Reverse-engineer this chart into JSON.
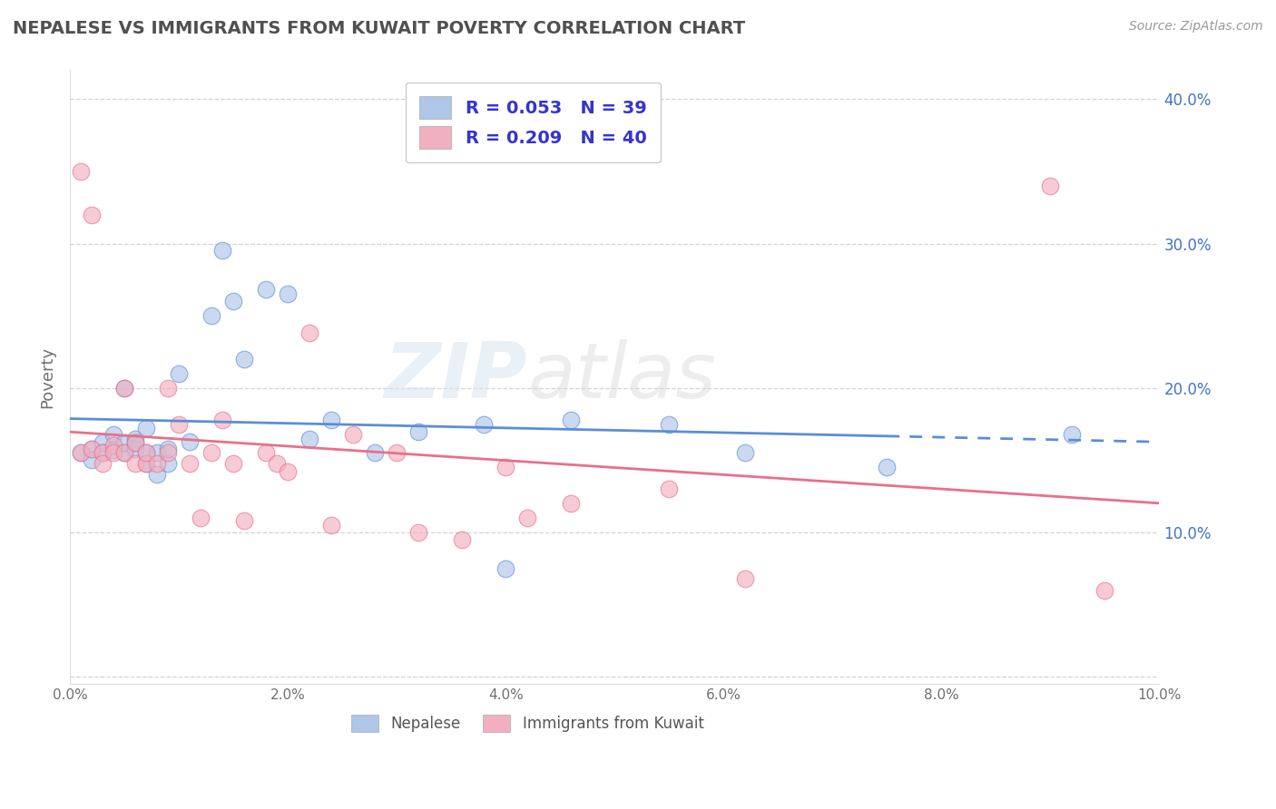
{
  "title": "NEPALESE VS IMMIGRANTS FROM KUWAIT POVERTY CORRELATION CHART",
  "source": "Source: ZipAtlas.com",
  "ylabel": "Poverty",
  "xlim": [
    0.0,
    0.1
  ],
  "ylim": [
    -0.005,
    0.42
  ],
  "xticks": [
    0.0,
    0.02,
    0.04,
    0.06,
    0.08,
    0.1
  ],
  "yticks": [
    0.0,
    0.1,
    0.2,
    0.3,
    0.4
  ],
  "ytick_labels": [
    "",
    "10.0%",
    "20.0%",
    "30.0%",
    "40.0%"
  ],
  "xtick_labels": [
    "0.0%",
    "2.0%",
    "4.0%",
    "6.0%",
    "8.0%",
    "10.0%"
  ],
  "blue_R": 0.053,
  "blue_N": 39,
  "pink_R": 0.209,
  "pink_N": 40,
  "blue_label": "Nepalese",
  "pink_label": "Immigrants from Kuwait",
  "blue_color": "#aec6e8",
  "pink_color": "#f2afc0",
  "blue_line_color": "#5b8dd9",
  "pink_line_color": "#e8708a",
  "blue_scatter": [
    [
      0.001,
      0.155
    ],
    [
      0.002,
      0.158
    ],
    [
      0.002,
      0.15
    ],
    [
      0.003,
      0.162
    ],
    [
      0.003,
      0.155
    ],
    [
      0.004,
      0.168
    ],
    [
      0.004,
      0.157
    ],
    [
      0.005,
      0.2
    ],
    [
      0.005,
      0.155
    ],
    [
      0.005,
      0.162
    ],
    [
      0.006,
      0.165
    ],
    [
      0.006,
      0.158
    ],
    [
      0.006,
      0.162
    ],
    [
      0.007,
      0.155
    ],
    [
      0.007,
      0.148
    ],
    [
      0.007,
      0.172
    ],
    [
      0.008,
      0.155
    ],
    [
      0.008,
      0.14
    ],
    [
      0.009,
      0.148
    ],
    [
      0.009,
      0.158
    ],
    [
      0.01,
      0.21
    ],
    [
      0.011,
      0.163
    ],
    [
      0.013,
      0.25
    ],
    [
      0.014,
      0.295
    ],
    [
      0.015,
      0.26
    ],
    [
      0.016,
      0.22
    ],
    [
      0.018,
      0.268
    ],
    [
      0.02,
      0.265
    ],
    [
      0.022,
      0.165
    ],
    [
      0.024,
      0.178
    ],
    [
      0.028,
      0.155
    ],
    [
      0.032,
      0.17
    ],
    [
      0.038,
      0.175
    ],
    [
      0.04,
      0.075
    ],
    [
      0.046,
      0.178
    ],
    [
      0.055,
      0.175
    ],
    [
      0.062,
      0.155
    ],
    [
      0.075,
      0.145
    ],
    [
      0.092,
      0.168
    ]
  ],
  "pink_scatter": [
    [
      0.001,
      0.155
    ],
    [
      0.001,
      0.35
    ],
    [
      0.002,
      0.32
    ],
    [
      0.002,
      0.158
    ],
    [
      0.003,
      0.155
    ],
    [
      0.003,
      0.148
    ],
    [
      0.004,
      0.16
    ],
    [
      0.004,
      0.155
    ],
    [
      0.005,
      0.155
    ],
    [
      0.005,
      0.2
    ],
    [
      0.006,
      0.148
    ],
    [
      0.006,
      0.162
    ],
    [
      0.007,
      0.148
    ],
    [
      0.007,
      0.155
    ],
    [
      0.008,
      0.148
    ],
    [
      0.009,
      0.2
    ],
    [
      0.009,
      0.155
    ],
    [
      0.01,
      0.175
    ],
    [
      0.011,
      0.148
    ],
    [
      0.012,
      0.11
    ],
    [
      0.013,
      0.155
    ],
    [
      0.014,
      0.178
    ],
    [
      0.015,
      0.148
    ],
    [
      0.016,
      0.108
    ],
    [
      0.018,
      0.155
    ],
    [
      0.019,
      0.148
    ],
    [
      0.02,
      0.142
    ],
    [
      0.022,
      0.238
    ],
    [
      0.024,
      0.105
    ],
    [
      0.026,
      0.168
    ],
    [
      0.03,
      0.155
    ],
    [
      0.032,
      0.1
    ],
    [
      0.036,
      0.095
    ],
    [
      0.04,
      0.145
    ],
    [
      0.042,
      0.11
    ],
    [
      0.046,
      0.12
    ],
    [
      0.055,
      0.13
    ],
    [
      0.062,
      0.068
    ],
    [
      0.09,
      0.34
    ],
    [
      0.095,
      0.06
    ]
  ],
  "watermark_zip": "ZIP",
  "watermark_atlas": "atlas",
  "background_color": "#ffffff",
  "grid_color": "#c8c8c8",
  "title_color": "#505050",
  "axis_label_color": "#707070",
  "legend_text_color": "#3535cc",
  "right_yaxis_color": "#4472c4"
}
